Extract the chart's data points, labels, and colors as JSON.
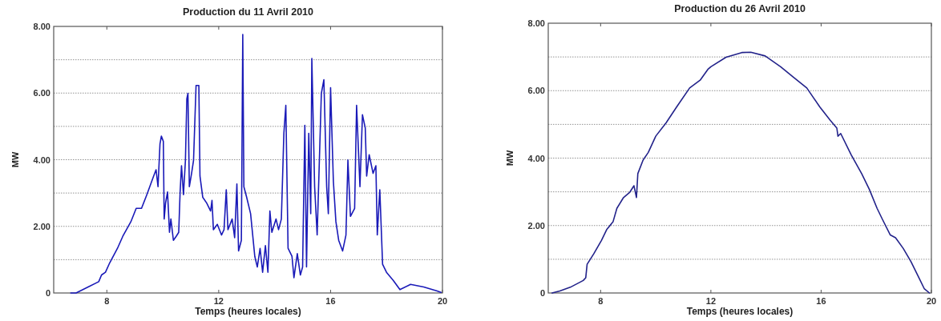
{
  "chart_data": [
    {
      "type": "line",
      "title": "Production du 11 Avril 2010",
      "xlabel": "Temps (heures locales)",
      "ylabel": "MW",
      "xlim": [
        6.1,
        20
      ],
      "xticks": [
        8,
        12,
        16,
        20
      ],
      "ylim": [
        0,
        8
      ],
      "yticks": [
        {
          "value": 0,
          "label": "0"
        },
        {
          "value": 1,
          "label": null
        },
        {
          "value": 2,
          "label": "2.00"
        },
        {
          "value": 3,
          "label": null
        },
        {
          "value": 4,
          "label": "4.00"
        },
        {
          "value": 5,
          "label": null
        },
        {
          "value": 6,
          "label": "6.00"
        },
        {
          "value": 7,
          "label": null
        },
        {
          "value": 8,
          "label": "8.00"
        }
      ],
      "grid": "y",
      "marker": "none",
      "line_style": "solid",
      "series": [
        {
          "color": "#1a1ab8",
          "x": [
            6.71,
            6.9,
            7.33,
            7.71,
            7.81,
            7.95,
            8.1,
            8.38,
            8.57,
            8.86,
            9.05,
            9.24,
            9.43,
            9.67,
            9.76,
            9.83,
            9.9,
            9.95,
            10.02,
            10.05,
            10.1,
            10.17,
            10.24,
            10.29,
            10.38,
            10.48,
            10.57,
            10.62,
            10.67,
            10.74,
            10.81,
            10.86,
            10.9,
            10.95,
            11.03,
            11.1,
            11.19,
            11.29,
            11.33,
            11.43,
            11.57,
            11.71,
            11.76,
            11.81,
            11.95,
            12.1,
            12.19,
            12.27,
            12.33,
            12.48,
            12.57,
            12.65,
            12.71,
            12.81,
            12.86,
            12.9,
            13.0,
            13.14,
            13.29,
            13.38,
            13.48,
            13.57,
            13.67,
            13.76,
            13.83,
            13.9,
            14.05,
            14.14,
            14.24,
            14.33,
            14.4,
            14.48,
            14.62,
            14.69,
            14.81,
            14.92,
            15.0,
            15.08,
            15.14,
            15.22,
            15.29,
            15.33,
            15.43,
            15.52,
            15.67,
            15.76,
            15.86,
            15.92,
            16.0,
            16.1,
            16.19,
            16.29,
            16.43,
            16.55,
            16.62,
            16.71,
            16.86,
            16.93,
            17.05,
            17.14,
            17.24,
            17.29,
            17.38,
            17.52,
            17.62,
            17.67,
            17.76,
            17.86,
            18.0,
            18.24,
            18.48,
            18.86,
            19.33,
            19.81,
            19.95
          ],
          "values": [
            0,
            0,
            0.18,
            0.34,
            0.54,
            0.62,
            0.9,
            1.34,
            1.7,
            2.14,
            2.54,
            2.54,
            2.95,
            3.5,
            3.7,
            3.19,
            4.47,
            4.71,
            4.55,
            2.22,
            2.7,
            3.03,
            1.82,
            2.22,
            1.58,
            1.7,
            1.82,
            3.03,
            3.82,
            2.95,
            3.98,
            5.83,
            5.99,
            3.19,
            3.59,
            3.98,
            6.23,
            6.23,
            3.51,
            2.87,
            2.7,
            2.46,
            2.78,
            1.9,
            2.06,
            1.74,
            1.9,
            3.1,
            1.9,
            2.22,
            1.66,
            3.27,
            1.26,
            1.58,
            7.76,
            3.19,
            2.87,
            2.38,
            1.1,
            0.78,
            1.34,
            0.62,
            1.42,
            0.62,
            2.46,
            1.82,
            2.22,
            1.9,
            2.22,
            4.79,
            5.63,
            1.34,
            1.1,
            0.46,
            1.18,
            0.54,
            0.78,
            5.03,
            0.78,
            4.79,
            2.38,
            7.04,
            3.19,
            1.74,
            5.99,
            6.4,
            3.19,
            2.38,
            6.16,
            3.35,
            2.14,
            1.58,
            1.26,
            1.74,
            3.99,
            2.3,
            2.54,
            5.63,
            3.19,
            5.35,
            4.95,
            3.51,
            4.15,
            3.59,
            3.82,
            1.74,
            3.1,
            0.86,
            0.62,
            0.38,
            0.1,
            0.26,
            0.18,
            0.06,
            0.02
          ]
        }
      ]
    },
    {
      "type": "line",
      "title": "Production du 26 Avril 2010",
      "xlabel": "Temps (heures locales)",
      "ylabel": "MW",
      "xlim": [
        6.1,
        20
      ],
      "xticks": [
        8,
        12,
        16,
        20
      ],
      "ylim": [
        0,
        8
      ],
      "yticks": [
        {
          "value": 0,
          "label": "0"
        },
        {
          "value": 1,
          "label": null
        },
        {
          "value": 2,
          "label": "2.00"
        },
        {
          "value": 3,
          "label": null
        },
        {
          "value": 4,
          "label": "4.00"
        },
        {
          "value": 5,
          "label": null
        },
        {
          "value": 6,
          "label": "6.00"
        },
        {
          "value": 7,
          "label": null
        },
        {
          "value": 8,
          "label": "8.00"
        }
      ],
      "grid": "y",
      "marker": "none",
      "line_style": "solid",
      "series": [
        {
          "color": "#22228a",
          "x": [
            6.24,
            6.52,
            6.9,
            7.37,
            7.46,
            7.51,
            7.75,
            8.03,
            8.22,
            8.45,
            8.59,
            8.83,
            9.06,
            9.21,
            9.3,
            9.35,
            9.54,
            9.73,
            10.0,
            10.38,
            10.76,
            11.23,
            11.61,
            11.89,
            12.0,
            12.55,
            13.12,
            13.45,
            13.97,
            14.53,
            15.01,
            15.48,
            15.95,
            16.33,
            16.57,
            16.61,
            16.71,
            17.09,
            17.47,
            17.75,
            18.03,
            18.22,
            18.51,
            18.7,
            18.98,
            19.26,
            19.55,
            19.74,
            19.93
          ],
          "values": [
            0,
            0.06,
            0.17,
            0.37,
            0.45,
            0.85,
            1.16,
            1.56,
            1.88,
            2.11,
            2.51,
            2.83,
            2.99,
            3.18,
            2.83,
            3.54,
            3.94,
            4.17,
            4.65,
            5.05,
            5.52,
            6.08,
            6.31,
            6.63,
            6.71,
            6.99,
            7.13,
            7.14,
            7.03,
            6.71,
            6.39,
            6.08,
            5.52,
            5.12,
            4.89,
            4.65,
            4.73,
            4.1,
            3.54,
            3.07,
            2.51,
            2.19,
            1.72,
            1.64,
            1.32,
            0.93,
            0.45,
            0.13,
            0
          ]
        }
      ]
    }
  ]
}
